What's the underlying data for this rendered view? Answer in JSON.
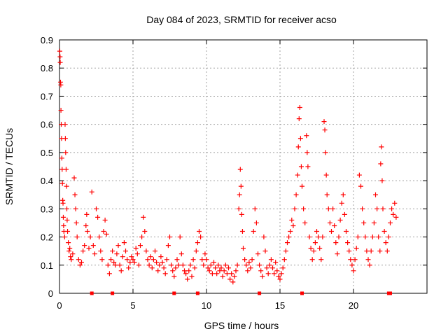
{
  "chart_data": {
    "type": "scatter",
    "title": "Day 084 of 2023, SRMTID for receiver acso",
    "xlabel": "GPS time / hours",
    "ylabel": "SRMTID / TECUs",
    "xlim": [
      0,
      25
    ],
    "ylim": [
      0,
      0.9
    ],
    "xticks": [
      0,
      5,
      10,
      15,
      20
    ],
    "xtick_labels": [
      "0",
      "5",
      "10",
      "15",
      "20"
    ],
    "yticks": [
      0,
      0.1,
      0.2,
      0.3,
      0.4,
      0.5,
      0.6,
      0.7,
      0.8,
      0.9
    ],
    "ytick_labels": [
      "0",
      "0.1",
      "0.2",
      "0.3",
      "0.4",
      "0.5",
      "0.6",
      "0.7",
      "0.8",
      "0.9"
    ],
    "grid": true,
    "marker": "+",
    "color": "#ff0000",
    "series": [
      {
        "name": "SRMTID",
        "points": [
          [
            0.02,
            0.86
          ],
          [
            0.04,
            0.84
          ],
          [
            0.05,
            0.82
          ],
          [
            0.07,
            0.75
          ],
          [
            0.09,
            0.74
          ],
          [
            0.1,
            0.65
          ],
          [
            0.12,
            0.6
          ],
          [
            0.14,
            0.55
          ],
          [
            0.16,
            0.48
          ],
          [
            0.18,
            0.44
          ],
          [
            0.2,
            0.39
          ],
          [
            0.22,
            0.33
          ],
          [
            0.24,
            0.32
          ],
          [
            0.26,
            0.27
          ],
          [
            0.28,
            0.24
          ],
          [
            0.3,
            0.22
          ],
          [
            0.35,
            0.2
          ],
          [
            0.38,
            0.6
          ],
          [
            0.4,
            0.55
          ],
          [
            0.42,
            0.5
          ],
          [
            0.45,
            0.44
          ],
          [
            0.48,
            0.38
          ],
          [
            0.5,
            0.3
          ],
          [
            0.52,
            0.26
          ],
          [
            0.55,
            0.22
          ],
          [
            0.6,
            0.18
          ],
          [
            0.65,
            0.15
          ],
          [
            0.7,
            0.16
          ],
          [
            0.75,
            0.13
          ],
          [
            0.8,
            0.12
          ],
          [
            0.9,
            0.14
          ],
          [
            1.0,
            0.41
          ],
          [
            1.05,
            0.35
          ],
          [
            1.1,
            0.3
          ],
          [
            1.15,
            0.25
          ],
          [
            1.2,
            0.2
          ],
          [
            1.3,
            0.12
          ],
          [
            1.4,
            0.1
          ],
          [
            1.5,
            0.11
          ],
          [
            1.6,
            0.15
          ],
          [
            1.7,
            0.17
          ],
          [
            1.8,
            0.24
          ],
          [
            1.85,
            0.28
          ],
          [
            1.9,
            0.22
          ],
          [
            2.0,
            0.16
          ],
          [
            2.1,
            0.2
          ],
          [
            2.2,
            0.36
          ],
          [
            2.3,
            0.17
          ],
          [
            2.4,
            0.14
          ],
          [
            2.5,
            0.3
          ],
          [
            2.6,
            0.27
          ],
          [
            2.7,
            0.2
          ],
          [
            2.8,
            0.15
          ],
          [
            2.9,
            0.12
          ],
          [
            3.0,
            0.22
          ],
          [
            3.1,
            0.26
          ],
          [
            3.2,
            0.21
          ],
          [
            3.3,
            0.1
          ],
          [
            3.4,
            0.07
          ],
          [
            3.5,
            0.12
          ],
          [
            3.6,
            0.15
          ],
          [
            3.7,
            0.11
          ],
          [
            3.8,
            0.1
          ],
          [
            3.9,
            0.14
          ],
          [
            4.0,
            0.17
          ],
          [
            4.1,
            0.1
          ],
          [
            4.2,
            0.08
          ],
          [
            4.3,
            0.13
          ],
          [
            4.4,
            0.18
          ],
          [
            4.5,
            0.15
          ],
          [
            4.6,
            0.12
          ],
          [
            4.7,
            0.09
          ],
          [
            4.8,
            0.11
          ],
          [
            4.9,
            0.13
          ],
          [
            5.0,
            0.12
          ],
          [
            5.1,
            0.11
          ],
          [
            5.2,
            0.16
          ],
          [
            5.3,
            0.14
          ],
          [
            5.4,
            0.1
          ],
          [
            5.5,
            0.17
          ],
          [
            5.6,
            0.2
          ],
          [
            5.7,
            0.27
          ],
          [
            5.8,
            0.22
          ],
          [
            5.9,
            0.15
          ],
          [
            6.0,
            0.12
          ],
          [
            6.1,
            0.1
          ],
          [
            6.2,
            0.13
          ],
          [
            6.3,
            0.09
          ],
          [
            6.4,
            0.12
          ],
          [
            6.5,
            0.15
          ],
          [
            6.6,
            0.11
          ],
          [
            6.7,
            0.08
          ],
          [
            6.8,
            0.1
          ],
          [
            6.9,
            0.13
          ],
          [
            7.0,
            0.11
          ],
          [
            7.1,
            0.09
          ],
          [
            7.2,
            0.07
          ],
          [
            7.3,
            0.12
          ],
          [
            7.4,
            0.17
          ],
          [
            7.5,
            0.2
          ],
          [
            7.6,
            0.1
          ],
          [
            7.7,
            0.08
          ],
          [
            7.8,
            0.06
          ],
          [
            7.9,
            0.09
          ],
          [
            8.0,
            0.12
          ],
          [
            8.1,
            0.1
          ],
          [
            8.2,
            0.2
          ],
          [
            8.3,
            0.14
          ],
          [
            8.4,
            0.1
          ],
          [
            8.5,
            0.08
          ],
          [
            8.6,
            0.07
          ],
          [
            8.7,
            0.05
          ],
          [
            8.8,
            0.08
          ],
          [
            8.9,
            0.1
          ],
          [
            9.0,
            0.06
          ],
          [
            9.1,
            0.12
          ],
          [
            9.2,
            0.09
          ],
          [
            9.3,
            0.15
          ],
          [
            9.4,
            0.18
          ],
          [
            9.5,
            0.22
          ],
          [
            9.6,
            0.2
          ],
          [
            9.7,
            0.12
          ],
          [
            9.8,
            0.1
          ],
          [
            9.9,
            0.14
          ],
          [
            10.0,
            0.12
          ],
          [
            10.1,
            0.09
          ],
          [
            10.2,
            0.08
          ],
          [
            10.3,
            0.1
          ],
          [
            10.4,
            0.07
          ],
          [
            10.5,
            0.11
          ],
          [
            10.6,
            0.09
          ],
          [
            10.7,
            0.07
          ],
          [
            10.8,
            0.1
          ],
          [
            10.9,
            0.08
          ],
          [
            11.0,
            0.09
          ],
          [
            11.1,
            0.06
          ],
          [
            11.2,
            0.08
          ],
          [
            11.3,
            0.1
          ],
          [
            11.4,
            0.07
          ],
          [
            11.5,
            0.09
          ],
          [
            11.6,
            0.05
          ],
          [
            11.7,
            0.07
          ],
          [
            11.8,
            0.04
          ],
          [
            11.9,
            0.06
          ],
          [
            12.0,
            0.08
          ],
          [
            12.1,
            0.1
          ],
          [
            12.2,
            0.3
          ],
          [
            12.25,
            0.35
          ],
          [
            12.3,
            0.44
          ],
          [
            12.35,
            0.38
          ],
          [
            12.4,
            0.28
          ],
          [
            12.45,
            0.22
          ],
          [
            12.5,
            0.16
          ],
          [
            12.6,
            0.12
          ],
          [
            12.7,
            0.1
          ],
          [
            12.8,
            0.08
          ],
          [
            12.9,
            0.11
          ],
          [
            13.0,
            0.09
          ],
          [
            13.1,
            0.12
          ],
          [
            13.2,
            0.22
          ],
          [
            13.3,
            0.3
          ],
          [
            13.4,
            0.25
          ],
          [
            13.5,
            0.14
          ],
          [
            13.6,
            0.1
          ],
          [
            13.7,
            0.08
          ],
          [
            13.8,
            0.06
          ],
          [
            13.9,
            0.2
          ],
          [
            14.0,
            0.15
          ],
          [
            14.1,
            0.09
          ],
          [
            14.2,
            0.07
          ],
          [
            14.3,
            0.1
          ],
          [
            14.4,
            0.12
          ],
          [
            14.5,
            0.09
          ],
          [
            14.6,
            0.07
          ],
          [
            14.7,
            0.11
          ],
          [
            14.8,
            0.08
          ],
          [
            14.9,
            0.06
          ],
          [
            15.0,
            0.05
          ],
          [
            15.1,
            0.07
          ],
          [
            15.2,
            0.09
          ],
          [
            15.3,
            0.12
          ],
          [
            15.4,
            0.15
          ],
          [
            15.5,
            0.18
          ],
          [
            15.6,
            0.2
          ],
          [
            15.7,
            0.22
          ],
          [
            15.8,
            0.26
          ],
          [
            15.9,
            0.24
          ],
          [
            16.0,
            0.3
          ],
          [
            16.1,
            0.35
          ],
          [
            16.2,
            0.42
          ],
          [
            16.25,
            0.52
          ],
          [
            16.3,
            0.62
          ],
          [
            16.35,
            0.66
          ],
          [
            16.4,
            0.55
          ],
          [
            16.45,
            0.45
          ],
          [
            16.5,
            0.38
          ],
          [
            16.6,
            0.3
          ],
          [
            16.7,
            0.25
          ],
          [
            16.8,
            0.56
          ],
          [
            16.85,
            0.5
          ],
          [
            16.9,
            0.45
          ],
          [
            17.0,
            0.2
          ],
          [
            17.1,
            0.16
          ],
          [
            17.2,
            0.12
          ],
          [
            17.3,
            0.15
          ],
          [
            17.4,
            0.18
          ],
          [
            17.5,
            0.22
          ],
          [
            17.6,
            0.2
          ],
          [
            17.7,
            0.16
          ],
          [
            17.8,
            0.12
          ],
          [
            17.9,
            0.2
          ],
          [
            18.0,
            0.61
          ],
          [
            18.05,
            0.58
          ],
          [
            18.1,
            0.5
          ],
          [
            18.15,
            0.42
          ],
          [
            18.2,
            0.35
          ],
          [
            18.3,
            0.3
          ],
          [
            18.4,
            0.25
          ],
          [
            18.5,
            0.22
          ],
          [
            18.6,
            0.3
          ],
          [
            18.7,
            0.24
          ],
          [
            18.8,
            0.18
          ],
          [
            18.9,
            0.14
          ],
          [
            19.0,
            0.2
          ],
          [
            19.1,
            0.26
          ],
          [
            19.2,
            0.32
          ],
          [
            19.3,
            0.35
          ],
          [
            19.4,
            0.28
          ],
          [
            19.5,
            0.22
          ],
          [
            19.6,
            0.18
          ],
          [
            19.7,
            0.15
          ],
          [
            19.8,
            0.12
          ],
          [
            19.9,
            0.1
          ],
          [
            20.0,
            0.08
          ],
          [
            20.1,
            0.12
          ],
          [
            20.2,
            0.16
          ],
          [
            20.3,
            0.2
          ],
          [
            20.4,
            0.42
          ],
          [
            20.5,
            0.38
          ],
          [
            20.6,
            0.3
          ],
          [
            20.7,
            0.25
          ],
          [
            20.8,
            0.2
          ],
          [
            20.9,
            0.15
          ],
          [
            21.0,
            0.12
          ],
          [
            21.1,
            0.1
          ],
          [
            21.2,
            0.15
          ],
          [
            21.3,
            0.2
          ],
          [
            21.4,
            0.25
          ],
          [
            21.5,
            0.35
          ],
          [
            21.6,
            0.3
          ],
          [
            21.7,
            0.2
          ],
          [
            21.8,
            0.15
          ],
          [
            21.85,
            0.46
          ],
          [
            21.9,
            0.52
          ],
          [
            21.95,
            0.4
          ],
          [
            22.0,
            0.3
          ],
          [
            22.1,
            0.22
          ],
          [
            22.2,
            0.18
          ],
          [
            22.3,
            0.15
          ],
          [
            22.4,
            0.2
          ],
          [
            22.5,
            0.25
          ],
          [
            22.6,
            0.3
          ],
          [
            22.7,
            0.28
          ],
          [
            22.8,
            0.32
          ],
          [
            22.9,
            0.27
          ]
        ]
      }
    ],
    "baseline_points_x": [
      2.2,
      3.6,
      7.8,
      9.4,
      13.6,
      16.5,
      22.4,
      22.5
    ]
  }
}
